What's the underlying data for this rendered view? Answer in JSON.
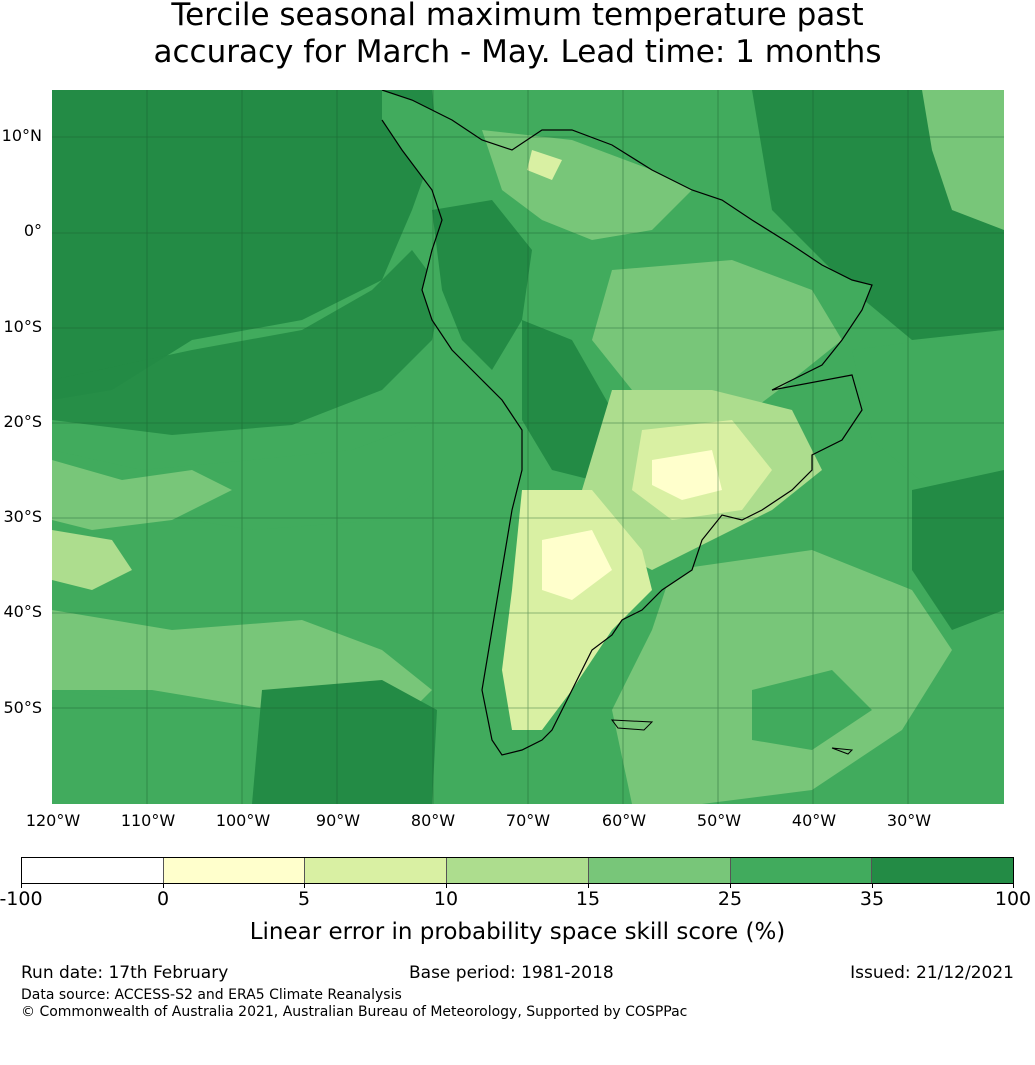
{
  "title": {
    "line1": "Tercile seasonal maximum temperature past",
    "line2": "accuracy for March - May. Lead time: 1 months"
  },
  "map": {
    "lat_labels": [
      "10°N",
      "0°",
      "10°S",
      "20°S",
      "30°S",
      "40°S",
      "50°S"
    ],
    "lon_labels": [
      "120°W",
      "110°W",
      "100°W",
      "90°W",
      "80°W",
      "70°W",
      "60°W",
      "50°W",
      "40°W",
      "30°W"
    ],
    "region": "South America",
    "icons": [
      "coastline-shape"
    ]
  },
  "colorbar": {
    "ticks": [
      "-100",
      "0",
      "5",
      "10",
      "15",
      "25",
      "35",
      "100"
    ],
    "colors": [
      "#ffffff",
      "#ffffcc",
      "#d9f0a3",
      "#addd8e",
      "#78c679",
      "#41ab5d",
      "#238b45"
    ],
    "label": "Linear error in probability space skill score (%)"
  },
  "footer": {
    "run_date": "Run date: 17th February",
    "base_period": "Base period: 1981-2018",
    "issued": "Issued: 21/12/2021",
    "data_source": "Data source: ACCESS-S2 and ERA5 Climate Reanalysis",
    "copyright": "© Commonwealth of Australia 2021, Australian Bureau of Meteorology, Supported by COSPPac"
  }
}
